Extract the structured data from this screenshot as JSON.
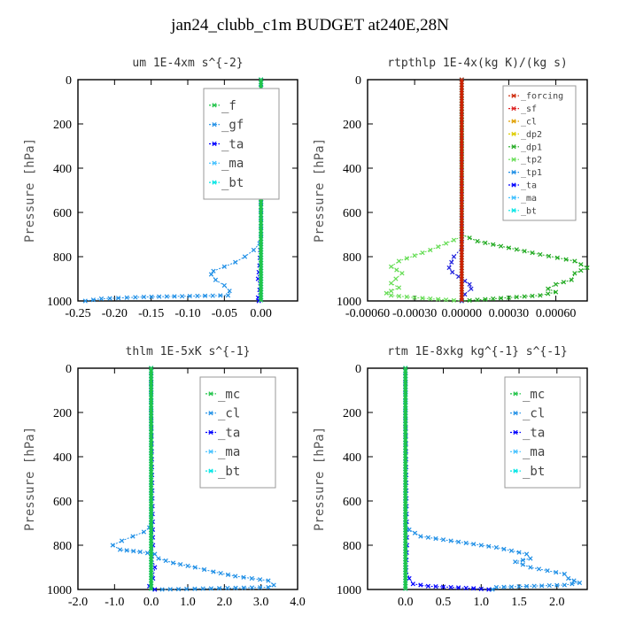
{
  "title": "jan24_clubb_c1m  BUDGET at240E,28N",
  "chart_data": [
    {
      "type": "line",
      "title": "um   1E-4xm s^{-2}",
      "ylabel": "Pressure [hPa]",
      "xlim": [
        -0.25,
        0.05
      ],
      "ylim": [
        1000,
        0
      ],
      "xticks": [
        -0.25,
        -0.2,
        -0.15,
        -0.1,
        -0.05,
        0.0
      ],
      "xticklabels": [
        "-0.25",
        "-0.20",
        "-0.15",
        "-0.10",
        "-0.05",
        "0.00"
      ],
      "yticks": [
        0,
        200,
        400,
        600,
        800,
        1000
      ],
      "legend_entries": [
        "_f",
        "_gf",
        "_ta",
        "_ma",
        "_bt"
      ],
      "series": [
        {
          "name": "_ta",
          "color": "#0000ff",
          "x": [
            0,
            0,
            0,
            -0.002,
            -0.004,
            -0.002,
            -0.004,
            -0.003
          ],
          "y": [
            0,
            200,
            700,
            840,
            900,
            950,
            985,
            1000
          ]
        },
        {
          "name": "_gf",
          "color": "#1f8fe6",
          "x": [
            0,
            0,
            0,
            -0.002,
            -0.01,
            -0.022,
            -0.035,
            -0.05,
            -0.065,
            -0.068,
            -0.062,
            -0.05,
            -0.043,
            -0.045,
            -0.16,
            -0.218,
            -0.24
          ],
          "y": [
            0,
            300,
            700,
            740,
            770,
            800,
            825,
            845,
            865,
            880,
            905,
            930,
            955,
            975,
            982,
            990,
            1000
          ]
        },
        {
          "name": "_ma",
          "color": "#40c0ff",
          "x": [
            0,
            0,
            0
          ],
          "y": [
            0,
            500,
            1000
          ]
        },
        {
          "name": "_bt",
          "color": "#00e5e5",
          "x": [
            0,
            0,
            0
          ],
          "y": [
            0,
            500,
            1000
          ]
        },
        {
          "name": "_f",
          "color": "#22c44a",
          "x": [
            0,
            0,
            0
          ],
          "y": [
            0,
            500,
            1000
          ]
        }
      ]
    },
    {
      "type": "line",
      "title": "rtpthlp   1E-4x(kg K)/(kg s)",
      "ylabel": "Pressure [hPa]",
      "xlim": [
        -0.0006,
        0.0008
      ],
      "ylim": [
        1000,
        0
      ],
      "xticks": [
        -0.0006,
        -0.0003,
        0.0,
        0.0003,
        0.0006
      ],
      "xticklabels": [
        "-0.00060",
        "-0.00030",
        "0.00000",
        "0.00030",
        "0.00060"
      ],
      "yticks": [
        0,
        200,
        400,
        600,
        800,
        1000
      ],
      "legend_entries": [
        "_forcing",
        "_sf",
        "_cl",
        "_dp2",
        "_dp1",
        "_tp2",
        "_tp1",
        "_ta",
        "_ma",
        "_bt"
      ],
      "series": [
        {
          "name": "_dp1",
          "color": "#22aa22",
          "x": [
            0,
            0,
            0.0001,
            0.0003,
            0.0005,
            0.00072,
            0.0008,
            0.00072,
            0.0007,
            0.0006,
            0.00055,
            0.0006,
            0.0005,
            0.0003,
            0
          ],
          "y": [
            0,
            700,
            730,
            760,
            790,
            820,
            850,
            875,
            905,
            925,
            945,
            960,
            975,
            985,
            1000
          ]
        },
        {
          "name": "_dp2",
          "color": "#66dd55",
          "x": [
            0,
            0,
            -0.0001,
            -0.0002,
            -0.0003,
            -0.0004,
            -0.00045,
            -0.00038,
            -0.00042,
            -0.00045,
            -0.0004,
            -0.00045,
            -0.00048,
            -0.00045,
            -0.0003,
            0
          ],
          "y": [
            0,
            710,
            740,
            770,
            795,
            820,
            845,
            875,
            900,
            920,
            940,
            955,
            965,
            975,
            985,
            1000
          ]
        },
        {
          "name": "_ta",
          "color": "#2222dd",
          "x": [
            0,
            0,
            -5e-05,
            -8e-05,
            -6e-05,
            -2e-05,
            2e-05,
            5e-05,
            6e-05,
            2e-05,
            0
          ],
          "y": [
            0,
            760,
            800,
            850,
            870,
            890,
            910,
            925,
            945,
            970,
            1000
          ]
        },
        {
          "name": "_bt",
          "color": "#00e5e5",
          "x": [
            0,
            0,
            0
          ],
          "y": [
            0,
            500,
            1000
          ]
        },
        {
          "name": "_forcing",
          "color": "#cc2200",
          "x": [
            0,
            0,
            0
          ],
          "y": [
            0,
            500,
            1000
          ]
        }
      ]
    },
    {
      "type": "line",
      "title": "thlm   1E-5xK s^{-1}",
      "ylabel": "Pressure [hPa]",
      "xlim": [
        -2.0,
        4.0
      ],
      "ylim": [
        1000,
        0
      ],
      "xticks": [
        -2.0,
        -1.0,
        0.0,
        1.0,
        2.0,
        3.0,
        4.0
      ],
      "xticklabels": [
        "-2.0",
        "-1.0",
        "0.0",
        "1.0",
        "2.0",
        "3.0",
        "4.0"
      ],
      "yticks": [
        0,
        200,
        400,
        600,
        800,
        1000
      ],
      "legend_entries": [
        "_mc",
        "_cl",
        "_ta",
        "_ma",
        "_bt"
      ],
      "series": [
        {
          "name": "_ta",
          "color": "#0000ff",
          "x": [
            0,
            0,
            0.05,
            0.02,
            0.1,
            0.05,
            -0.05,
            0.1
          ],
          "y": [
            0,
            200,
            800,
            850,
            900,
            950,
            985,
            1000
          ]
        },
        {
          "name": "_cl",
          "color": "#1f8fe6",
          "x": [
            0,
            0,
            0,
            -0.05,
            -0.2,
            -0.5,
            -0.8,
            -1.05,
            -0.85,
            -0.3,
            0.1,
            0.2,
            0.6,
            1.2,
            1.7,
            2.3,
            3.2,
            3.35,
            3.2,
            0.3
          ],
          "y": [
            0,
            300,
            700,
            720,
            740,
            760,
            780,
            800,
            820,
            830,
            840,
            860,
            880,
            900,
            920,
            940,
            960,
            980,
            990,
            1000
          ]
        },
        {
          "name": "_ma",
          "color": "#40c0ff",
          "x": [
            0,
            0,
            0
          ],
          "y": [
            0,
            500,
            1000
          ]
        },
        {
          "name": "_bt",
          "color": "#00e5e5",
          "x": [
            0,
            0,
            0
          ],
          "y": [
            0,
            500,
            1000
          ]
        },
        {
          "name": "_mc",
          "color": "#22c44a",
          "x": [
            0,
            0,
            0
          ],
          "y": [
            0,
            500,
            1000
          ]
        }
      ]
    },
    {
      "type": "line",
      "title": "rtm   1E-8xkg kg^{-1} s^{-1}",
      "ylabel": "Pressure [hPa]",
      "xlim": [
        -0.5,
        2.4
      ],
      "ylim": [
        1000,
        0
      ],
      "xticks": [
        0.0,
        0.5,
        1.0,
        1.5,
        2.0
      ],
      "xticklabels": [
        "0.0",
        "0.5",
        "1.0",
        "1.5",
        "2.0"
      ],
      "yticks": [
        0,
        200,
        400,
        600,
        800,
        1000
      ],
      "legend_entries": [
        "_mc",
        "_cl",
        "_ta",
        "_ma",
        "_bt"
      ],
      "series": [
        {
          "name": "_ta",
          "color": "#0000ff",
          "x": [
            0,
            0,
            0.02,
            0.01,
            0.05,
            0.1,
            0.3,
            0.6,
            0.9,
            1.1
          ],
          "y": [
            0,
            200,
            800,
            900,
            950,
            975,
            985,
            990,
            995,
            1000
          ]
        },
        {
          "name": "_cl",
          "color": "#1f8fe6",
          "x": [
            0,
            0,
            0,
            0.05,
            0.2,
            0.6,
            1.2,
            1.6,
            1.65,
            1.45,
            1.65,
            2.1,
            2.15,
            2.3,
            2.1,
            1.2,
            1.15
          ],
          "y": [
            0,
            300,
            700,
            730,
            760,
            780,
            810,
            840,
            860,
            875,
            900,
            930,
            950,
            970,
            980,
            990,
            1000
          ]
        },
        {
          "name": "_ma",
          "color": "#40c0ff",
          "x": [
            0,
            0,
            0
          ],
          "y": [
            0,
            500,
            1000
          ]
        },
        {
          "name": "_bt",
          "color": "#00e5e5",
          "x": [
            0,
            0,
            0
          ],
          "y": [
            0,
            500,
            1000
          ]
        },
        {
          "name": "_mc",
          "color": "#22c44a",
          "x": [
            0,
            0,
            0
          ],
          "y": [
            0,
            500,
            1000
          ]
        }
      ]
    }
  ]
}
